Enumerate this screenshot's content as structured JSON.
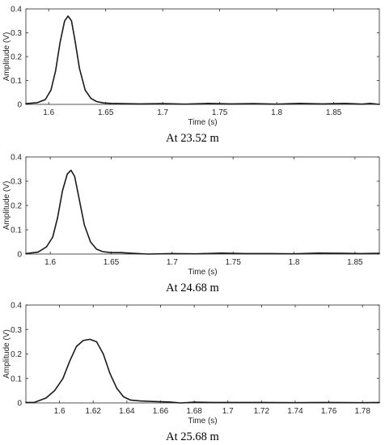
{
  "chart_data": [
    {
      "type": "line",
      "xlabel": "Time (s)",
      "ylabel": "Amplitude (V)",
      "xlim": [
        1.58,
        1.89
      ],
      "ylim": [
        0,
        0.4
      ],
      "xticks": [
        1.6,
        1.65,
        1.7,
        1.75,
        1.8,
        1.85
      ],
      "xtick_labels": [
        "1.6",
        "1.65",
        "1.7",
        "1.75",
        "1.8",
        "1.85"
      ],
      "yticks": [
        0,
        0.1,
        0.2,
        0.3,
        0.4
      ],
      "ytick_labels": [
        "0",
        "0.1",
        "0.2",
        "0.3",
        "0.4"
      ],
      "grid": false,
      "caption": "At 23.52 m",
      "series": [
        {
          "color": "#1a1a1a",
          "x": [
            1.58,
            1.59,
            1.597,
            1.602,
            1.606,
            1.61,
            1.614,
            1.617,
            1.62,
            1.623,
            1.627,
            1.632,
            1.637,
            1.642,
            1.648,
            1.655,
            1.665,
            1.68,
            1.7,
            1.72,
            1.74,
            1.76,
            1.78,
            1.8,
            1.82,
            1.84,
            1.86,
            1.875,
            1.882,
            1.89
          ],
          "y": [
            0.003,
            0.007,
            0.02,
            0.06,
            0.14,
            0.26,
            0.35,
            0.37,
            0.35,
            0.27,
            0.15,
            0.06,
            0.025,
            0.012,
            0.006,
            0.004,
            0.003,
            0.002,
            0.003,
            0.001,
            0.004,
            0.002,
            0.003,
            0.001,
            0.004,
            0.002,
            0.004,
            0.001,
            0.004,
            0.0
          ]
        }
      ]
    },
    {
      "type": "line",
      "xlabel": "Time (s)",
      "ylabel": "Amplitude (V)",
      "xlim": [
        1.58,
        1.87
      ],
      "ylim": [
        0,
        0.4
      ],
      "xticks": [
        1.6,
        1.65,
        1.7,
        1.75,
        1.8,
        1.85
      ],
      "xtick_labels": [
        "1.6",
        "1.65",
        "1.7",
        "1.75",
        "1.8",
        "1.85"
      ],
      "yticks": [
        0,
        0.1,
        0.2,
        0.3,
        0.4
      ],
      "ytick_labels": [
        "0",
        "0.1",
        "0.2",
        "0.3",
        "0.4"
      ],
      "grid": false,
      "caption": "At 24.68 m",
      "series": [
        {
          "color": "#1a1a1a",
          "x": [
            1.58,
            1.59,
            1.597,
            1.602,
            1.606,
            1.61,
            1.614,
            1.617,
            1.62,
            1.624,
            1.628,
            1.633,
            1.638,
            1.643,
            1.65,
            1.658,
            1.665,
            1.68,
            1.7,
            1.72,
            1.74,
            1.76,
            1.78,
            1.8,
            1.82,
            1.84,
            1.855,
            1.87
          ],
          "y": [
            0.002,
            0.008,
            0.03,
            0.07,
            0.15,
            0.26,
            0.33,
            0.345,
            0.32,
            0.22,
            0.12,
            0.05,
            0.02,
            0.01,
            0.006,
            0.006,
            0.004,
            0.0,
            0.002,
            0.001,
            0.004,
            0.002,
            0.002,
            0.001,
            0.004,
            0.003,
            0.002,
            0.003
          ]
        }
      ]
    },
    {
      "type": "line",
      "xlabel": "Time (s)",
      "ylabel": "Amplitude (V)",
      "xlim": [
        1.58,
        1.79
      ],
      "ylim": [
        0,
        0.4
      ],
      "xticks": [
        1.6,
        1.62,
        1.64,
        1.66,
        1.68,
        1.7,
        1.72,
        1.74,
        1.76,
        1.78
      ],
      "xtick_labels": [
        "1.6",
        "1.62",
        "1.64",
        "1.66",
        "1.68",
        "1.7",
        "1.72",
        "1.74",
        "1.76",
        "1.78"
      ],
      "yticks": [
        0,
        0.1,
        0.2,
        0.3,
        0.4
      ],
      "ytick_labels": [
        "0",
        "0.1",
        "0.2",
        "0.3",
        "0.4"
      ],
      "grid": false,
      "caption": "At 25.68 m",
      "series": [
        {
          "color": "#1a1a1a",
          "x": [
            1.58,
            1.585,
            1.592,
            1.597,
            1.602,
            1.606,
            1.61,
            1.614,
            1.618,
            1.622,
            1.626,
            1.63,
            1.634,
            1.638,
            1.642,
            1.648,
            1.655,
            1.665,
            1.672,
            1.68,
            1.69,
            1.7,
            1.72,
            1.74,
            1.76,
            1.78,
            1.79
          ],
          "y": [
            0.002,
            0.002,
            0.02,
            0.05,
            0.1,
            0.17,
            0.23,
            0.255,
            0.26,
            0.25,
            0.2,
            0.12,
            0.06,
            0.025,
            0.012,
            0.008,
            0.006,
            0.004,
            0.0,
            0.003,
            0.002,
            0.002,
            0.002,
            0.001,
            0.002,
            0.001,
            0.002
          ]
        }
      ]
    }
  ]
}
